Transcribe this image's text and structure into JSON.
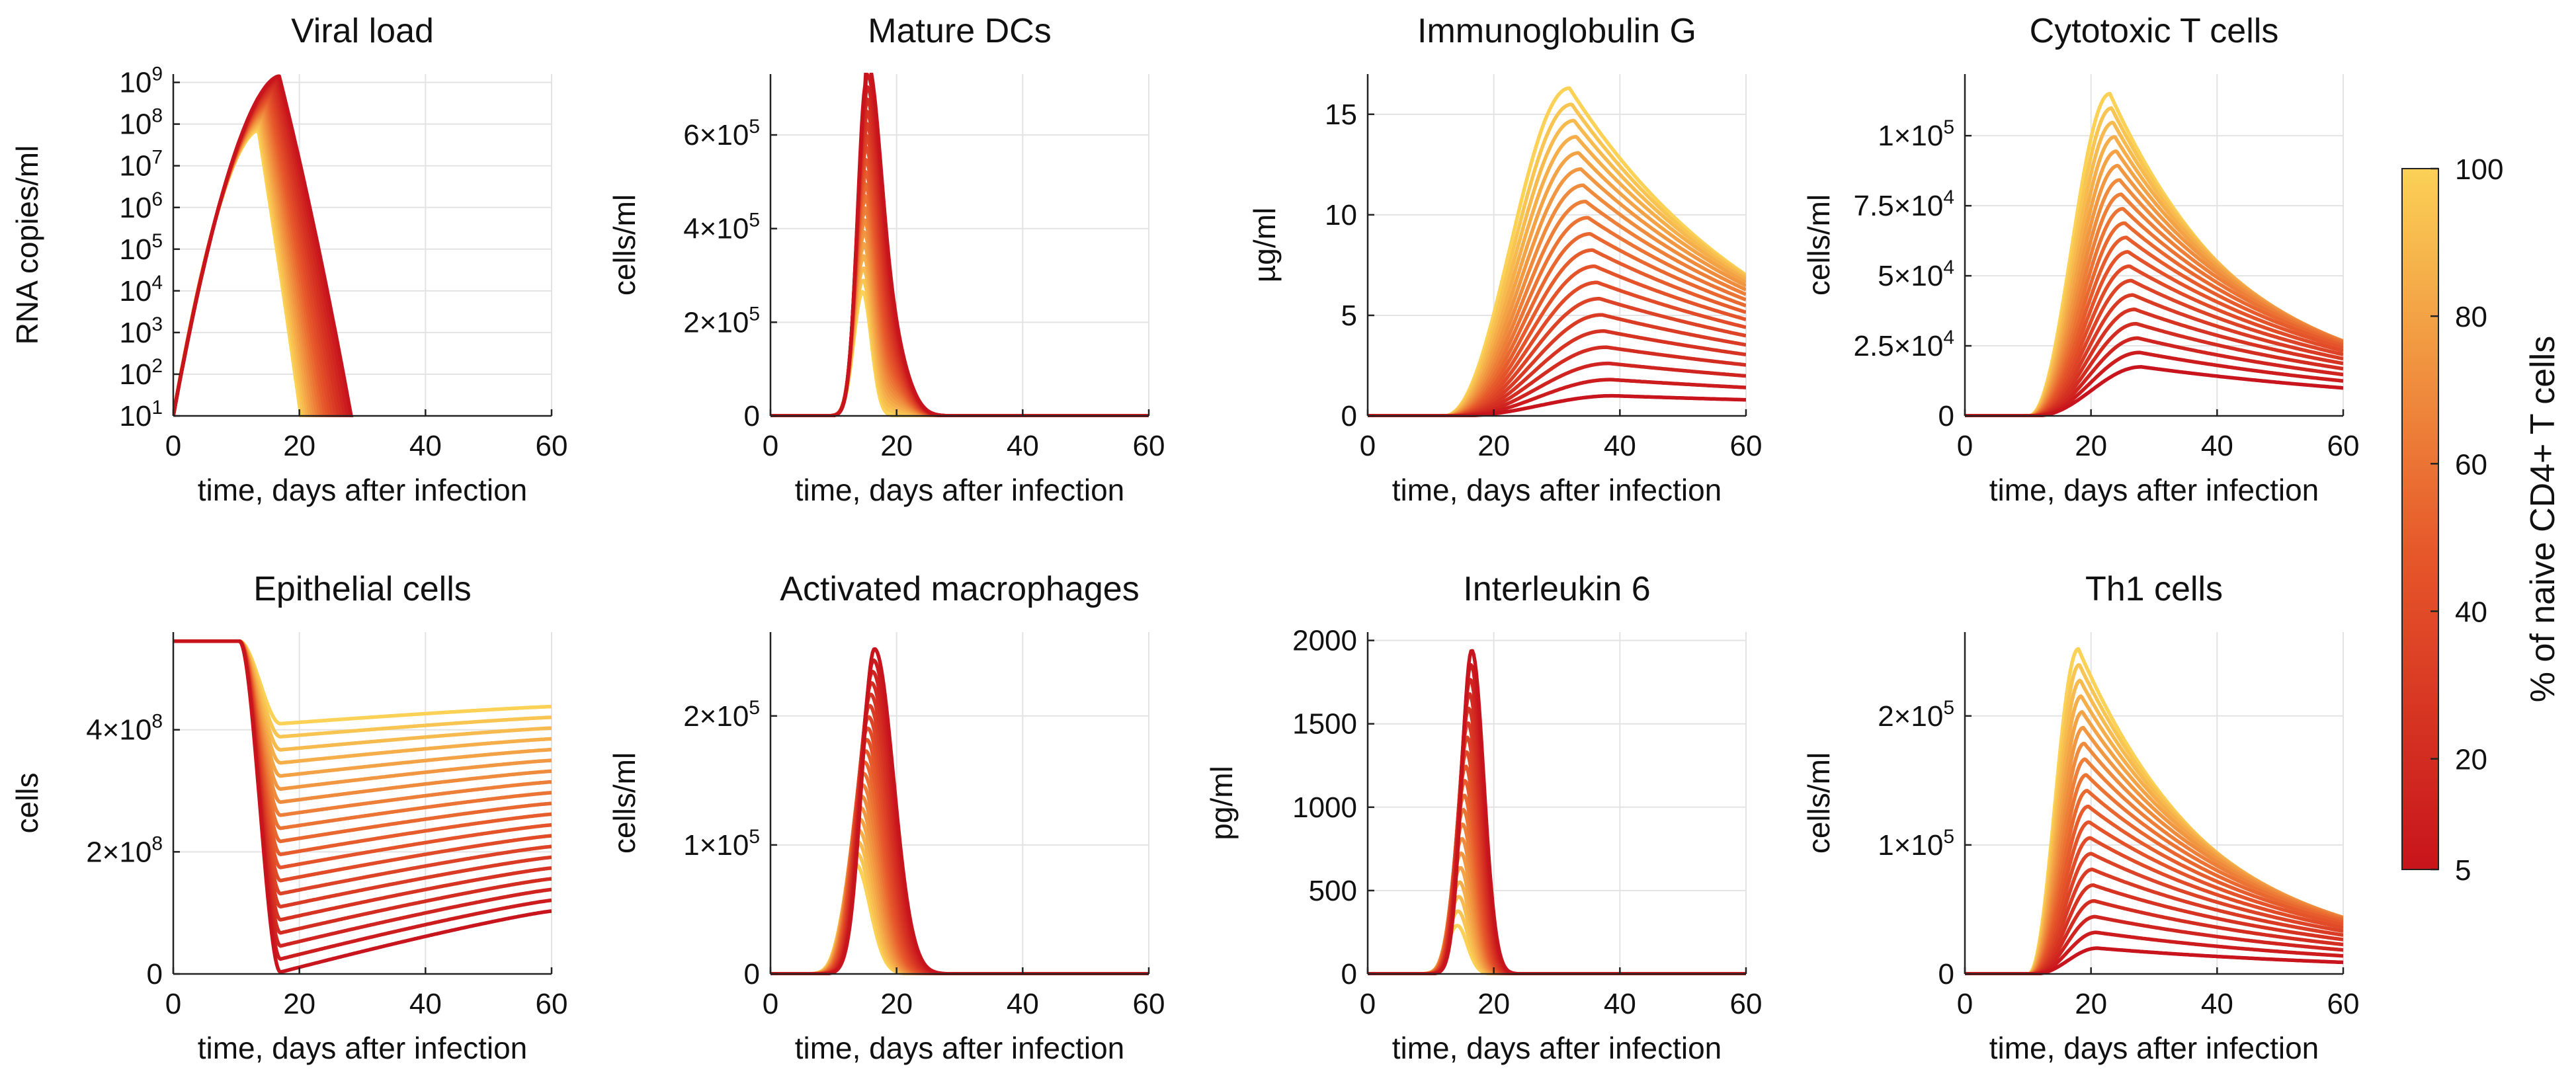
{
  "chart_data": [
    {
      "id": "viral-load",
      "type": "line",
      "title": "Viral load",
      "xlabel": "time, days after infection",
      "ylabel": "RNA copies/ml",
      "xlim": [
        0,
        60
      ],
      "ylim": [
        1,
        9.2
      ],
      "yscale": "log10",
      "xticks": [
        0,
        20,
        40,
        60
      ],
      "yticks": [
        1,
        2,
        3,
        4,
        5,
        6,
        7,
        8,
        9
      ],
      "ytick_labels": [
        "10^1",
        "10^2",
        "10^3",
        "10^4",
        "10^5",
        "10^6",
        "10^7",
        "10^8",
        "10^9"
      ],
      "shape": {
        "kind": "viral"
      },
      "curve_count": 20,
      "color_range": [
        5,
        100
      ]
    },
    {
      "id": "mature-dcs",
      "type": "line",
      "title": "Mature DCs",
      "xlabel": "time, days after infection",
      "ylabel": "cells/ml",
      "xlim": [
        0,
        60
      ],
      "ylim": [
        0,
        730000
      ],
      "xticks": [
        0,
        20,
        40,
        60
      ],
      "yticks": [
        0,
        200000,
        400000,
        600000
      ],
      "ytick_labels": [
        "0",
        "2×10^5",
        "4×10^5",
        "6×10^5"
      ],
      "shape": {
        "kind": "spike",
        "peak_min": 265000,
        "peak_max": 700000,
        "tpeak_min": 14.6,
        "tpeak_max": 15.2,
        "sigma_up": 1.4,
        "sigma_down_min": 1.4,
        "sigma_down_max": 2.2,
        "shoulder": 150000
      },
      "curve_count": 20,
      "color_range": [
        5,
        100
      ]
    },
    {
      "id": "immunoglobulin-g",
      "type": "line",
      "title": "Immunoglobulin G",
      "xlabel": "time, days after infection",
      "ylabel": "µg/ml",
      "xlim": [
        0,
        60
      ],
      "ylim": [
        0,
        17
      ],
      "xticks": [
        0,
        20,
        40,
        60
      ],
      "yticks": [
        0,
        5,
        10,
        15
      ],
      "ytick_labels": [
        "0",
        "5",
        "10",
        "15"
      ],
      "shape": {
        "kind": "rise",
        "peak_min": 1.0,
        "peak_max": 16.3,
        "tpeak_min": 39,
        "tpeak_max": 32,
        "onset_min": 14,
        "onset_max": 12,
        "end_frac_min": 0.8,
        "end_frac_max": 0.43
      },
      "curve_count": 20,
      "color_range": [
        5,
        100
      ]
    },
    {
      "id": "cytotoxic-t-cells",
      "type": "line",
      "title": "Cytotoxic T cells",
      "xlabel": "time, days after infection",
      "ylabel": "cells/ml",
      "xlim": [
        0,
        60
      ],
      "ylim": [
        0,
        122000
      ],
      "xticks": [
        0,
        20,
        40,
        60
      ],
      "yticks": [
        0,
        25000,
        50000,
        75000,
        100000
      ],
      "ytick_labels": [
        "0",
        "2.5×10^4",
        "5×10^4",
        "7.5×10^4",
        "1×10^5"
      ],
      "shape": {
        "kind": "rise",
        "peak_min": 17500,
        "peak_max": 115000,
        "tpeak_min": 28,
        "tpeak_max": 23,
        "onset_min": 11,
        "onset_max": 10,
        "end_frac_min": 0.57,
        "end_frac_max": 0.2
      },
      "curve_count": 20,
      "color_range": [
        5,
        100
      ]
    },
    {
      "id": "epithelial-cells",
      "type": "line",
      "title": "Epithelial cells",
      "xlabel": "time, days after infection",
      "ylabel": "cells",
      "xlim": [
        0,
        60
      ],
      "ylim": [
        0,
        560000000
      ],
      "xticks": [
        0,
        20,
        40,
        60
      ],
      "yticks": [
        0,
        200000000,
        400000000
      ],
      "ytick_labels": [
        "0",
        "2×10^8",
        "4×10^8"
      ],
      "shape": {
        "kind": "drop",
        "start": 545000000,
        "min_low": 3000000,
        "min_high": 410000000,
        "end_low": 103000000,
        "end_high": 438000000
      },
      "curve_count": 20,
      "color_range": [
        5,
        100
      ]
    },
    {
      "id": "activated-macrophages",
      "type": "line",
      "title": "Activated macrophages",
      "xlabel": "time, days after infection",
      "ylabel": "cells/ml",
      "xlim": [
        0,
        60
      ],
      "ylim": [
        0,
        265000
      ],
      "xticks": [
        0,
        20,
        40,
        60
      ],
      "yticks": [
        0,
        100000,
        200000
      ],
      "ytick_labels": [
        "0",
        "1×10^5",
        "2×10^5"
      ],
      "shape": {
        "kind": "spike",
        "peak_min": 85000,
        "peak_max": 252000,
        "tpeak_min": 13.5,
        "tpeak_max": 16.5,
        "sigma_up": 2.0,
        "sigma_down_min": 2.3,
        "sigma_down_max": 3.0,
        "shoulder": 0
      },
      "curve_count": 20,
      "color_range": [
        5,
        100
      ]
    },
    {
      "id": "interleukin-6",
      "type": "line",
      "title": "Interleukin 6",
      "xlabel": "time, days after infection",
      "ylabel": "pg/ml",
      "xlim": [
        0,
        60
      ],
      "ylim": [
        0,
        2050
      ],
      "xticks": [
        0,
        20,
        40,
        60
      ],
      "yticks": [
        0,
        500,
        1000,
        1500,
        2000
      ],
      "ytick_labels": [
        "0",
        "500",
        "1000",
        "1500",
        "2000"
      ],
      "shape": {
        "kind": "spike",
        "peak_min": 290,
        "peak_max": 1940,
        "tpeak_min": 14.2,
        "tpeak_max": 16.5,
        "sigma_up": 1.6,
        "sigma_down_min": 1.6,
        "sigma_down_max": 1.9,
        "shoulder": 0
      },
      "curve_count": 20,
      "color_range": [
        5,
        100
      ]
    },
    {
      "id": "th1-cells",
      "type": "line",
      "title": "Th1 cells",
      "xlabel": "time, days after infection",
      "ylabel": "cells/ml",
      "xlim": [
        0,
        60
      ],
      "ylim": [
        0,
        265000
      ],
      "xticks": [
        0,
        20,
        40,
        60
      ],
      "yticks": [
        0,
        100000,
        200000
      ],
      "ytick_labels": [
        "0",
        "1×10^5",
        "2×10^5"
      ],
      "shape": {
        "kind": "rise",
        "peak_min": 20000,
        "peak_max": 252000,
        "tpeak_min": 21,
        "tpeak_max": 18,
        "onset_min": 11,
        "onset_max": 10,
        "end_frac_min": 0.45,
        "end_frac_max": 0.15
      },
      "curve_count": 20,
      "color_range": [
        5,
        100
      ]
    }
  ],
  "colorbar": {
    "label": "% of naive CD4+ T cells",
    "min": 5,
    "max": 100,
    "ticks": [
      5,
      20,
      40,
      60,
      80,
      100
    ],
    "colors": {
      "low": "#c8141c",
      "mid": "#e6572a",
      "high": "#fbd156"
    }
  },
  "colors": {
    "grid": "#e3e3e3",
    "axis": "#222222"
  }
}
